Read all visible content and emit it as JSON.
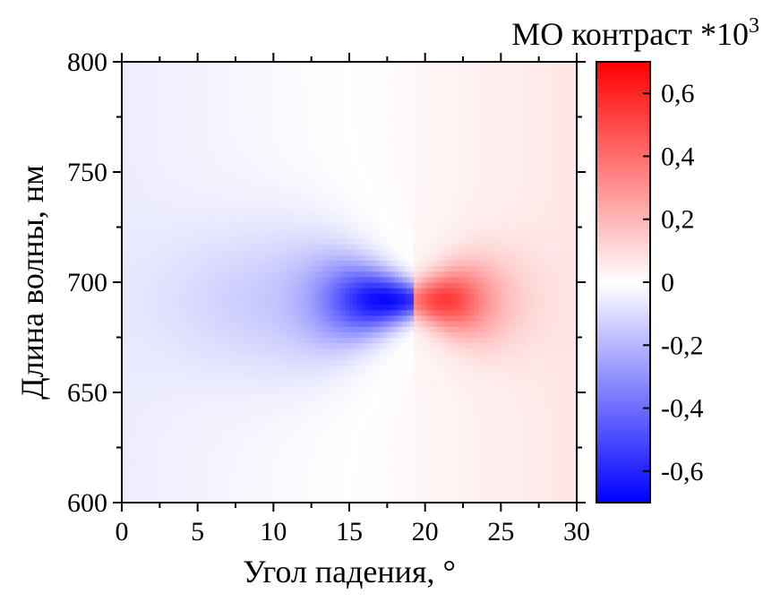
{
  "chart_data": {
    "type": "heatmap",
    "title": "",
    "xlabel": "Угол падения, °",
    "ylabel": "Длина волны, нм",
    "colorbar_label": "МО контраст *10",
    "colorbar_label_exponent": "3",
    "xlim": [
      0,
      30
    ],
    "ylim": [
      600,
      800
    ],
    "zlim": [
      -0.7,
      0.7
    ],
    "x_ticks": [
      0,
      5,
      10,
      15,
      20,
      25,
      30
    ],
    "x_tick_labels": [
      "0",
      "5",
      "10",
      "15",
      "20",
      "25",
      "30"
    ],
    "y_ticks": [
      600,
      650,
      700,
      750,
      800
    ],
    "y_tick_labels": [
      "600",
      "650",
      "700",
      "750",
      "800"
    ],
    "colorbar_ticks": [
      -0.6,
      -0.4,
      -0.2,
      0,
      0.2,
      0.4,
      0.6
    ],
    "colorbar_tick_labels": [
      "-0,6",
      "-0,4",
      "-0,2",
      "0",
      "0,2",
      "0,4",
      "0,6"
    ],
    "colorscale": [
      "#0000ff",
      "#ffffff",
      "#ff0000"
    ],
    "features": [
      {
        "kind": "minimum",
        "angle": 17.5,
        "wavelength": 692,
        "value": -0.65
      },
      {
        "kind": "maximum",
        "angle": 21,
        "wavelength": 693,
        "value": 0.45
      }
    ],
    "background_trend": [
      {
        "angle": 0,
        "value": -0.05
      },
      {
        "angle": 15,
        "value": 0.0
      },
      {
        "angle": 30,
        "value": 0.07
      }
    ]
  }
}
